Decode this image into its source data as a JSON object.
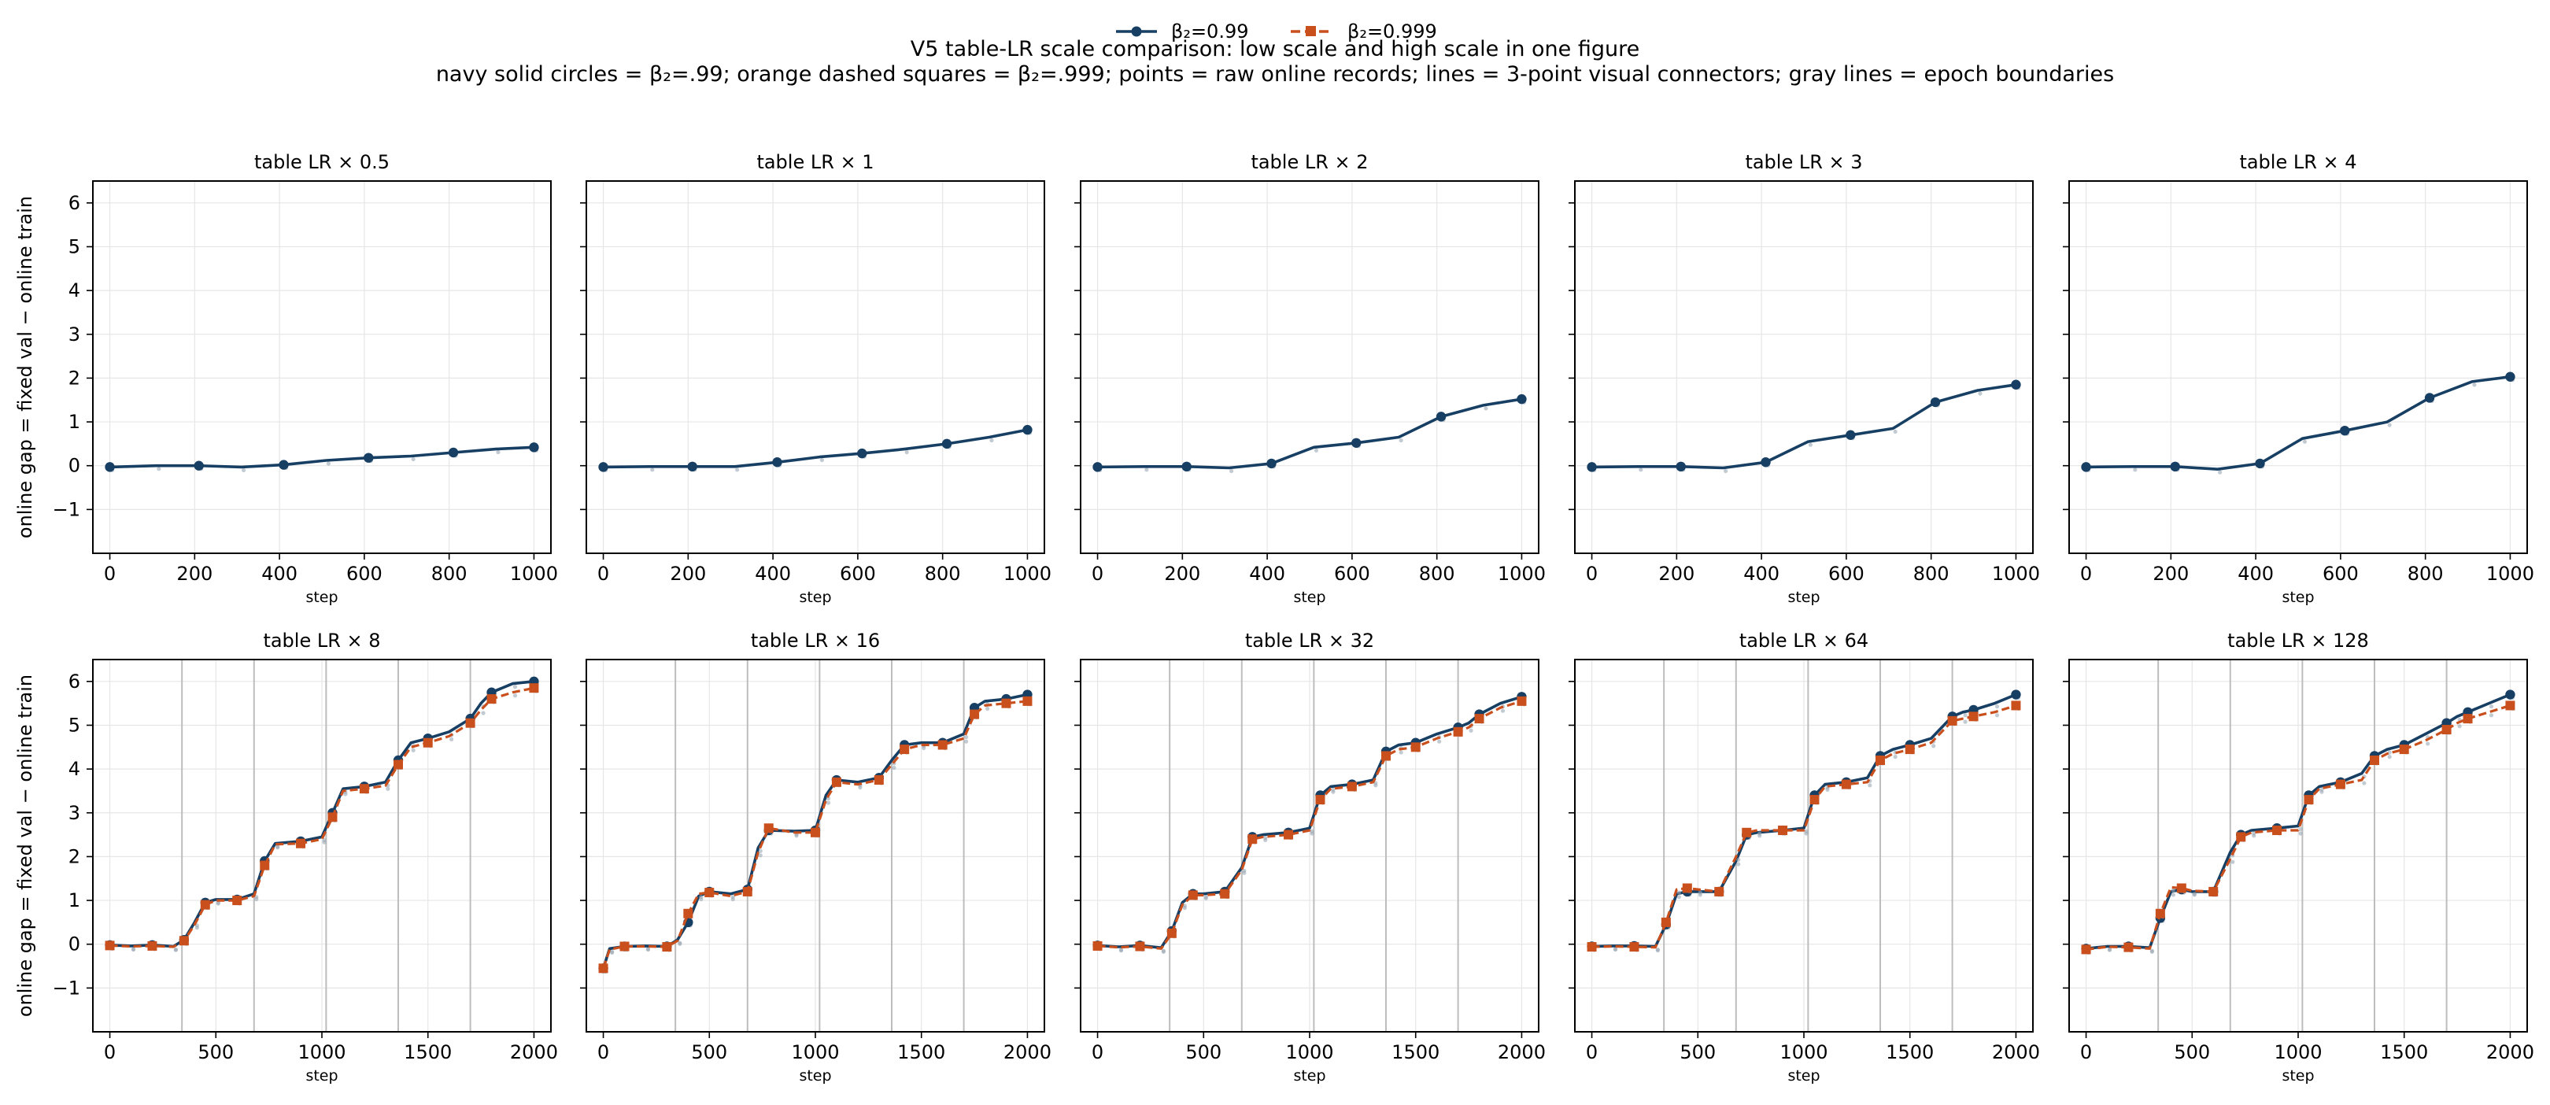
{
  "figure": {
    "title": "V5 table-LR scale comparison: low scale and high scale in one figure",
    "subtitle": "navy solid circles = β₂=.99; orange dashed squares = β₂=.999; points = raw online records; lines = 3-point visual connectors; gray lines = epoch boundaries",
    "legend": [
      {
        "label": "β₂=0.99",
        "color": "#173f63",
        "marker": "circle",
        "dash": "solid"
      },
      {
        "label": "β₂=0.999",
        "color": "#c94f1d",
        "marker": "square",
        "dash": "dashed"
      }
    ],
    "colors": {
      "navy": "#173f63",
      "orange": "#c94f1d",
      "raw_points": "#9aa6b4",
      "epoch_line": "#bdbdbd"
    }
  },
  "chart_data": [
    {
      "type": "line",
      "title": "table LR × 0.5",
      "xlabel": "step",
      "ylabel": "online gap = fixed val − online train",
      "xlim": [
        -40,
        1040
      ],
      "ylim": [
        -2,
        6.5
      ],
      "xticks": [
        0,
        200,
        400,
        600,
        800,
        1000
      ],
      "yticks": [
        -1,
        0,
        1,
        2,
        3,
        4,
        5,
        6
      ],
      "grid": true,
      "epoch_boundaries": [],
      "series": [
        {
          "name": "β₂=0.99",
          "x": [
            0,
            110,
            210,
            310,
            410,
            510,
            610,
            710,
            810,
            910,
            1000
          ],
          "y": [
            -0.03,
            0.0,
            0.0,
            -0.03,
            0.02,
            0.12,
            0.18,
            0.22,
            0.3,
            0.38,
            0.42
          ]
        },
        {
          "name": "β₂=0.999",
          "x": [],
          "y": []
        }
      ]
    },
    {
      "type": "line",
      "title": "table LR × 1",
      "xlabel": "step",
      "ylabel": "",
      "xlim": [
        -40,
        1040
      ],
      "ylim": [
        -2,
        6.5
      ],
      "xticks": [
        0,
        200,
        400,
        600,
        800,
        1000
      ],
      "yticks": [
        -1,
        0,
        1,
        2,
        3,
        4,
        5,
        6
      ],
      "grid": true,
      "epoch_boundaries": [],
      "series": [
        {
          "name": "β₂=0.99",
          "x": [
            0,
            110,
            210,
            310,
            410,
            510,
            610,
            710,
            810,
            910,
            1000
          ],
          "y": [
            -0.03,
            -0.02,
            -0.02,
            -0.02,
            0.08,
            0.2,
            0.28,
            0.38,
            0.5,
            0.65,
            0.82
          ]
        },
        {
          "name": "β₂=0.999",
          "x": [],
          "y": []
        }
      ]
    },
    {
      "type": "line",
      "title": "table LR × 2",
      "xlabel": "step",
      "ylabel": "",
      "xlim": [
        -40,
        1040
      ],
      "ylim": [
        -2,
        6.5
      ],
      "xticks": [
        0,
        200,
        400,
        600,
        800,
        1000
      ],
      "yticks": [
        -1,
        0,
        1,
        2,
        3,
        4,
        5,
        6
      ],
      "grid": true,
      "epoch_boundaries": [],
      "series": [
        {
          "name": "β₂=0.99",
          "x": [
            0,
            110,
            210,
            310,
            410,
            510,
            610,
            710,
            810,
            910,
            1000
          ],
          "y": [
            -0.03,
            -0.02,
            -0.02,
            -0.05,
            0.05,
            0.42,
            0.52,
            0.65,
            1.12,
            1.38,
            1.52
          ]
        },
        {
          "name": "β₂=0.999",
          "x": [],
          "y": []
        }
      ]
    },
    {
      "type": "line",
      "title": "table LR × 3",
      "xlabel": "step",
      "ylabel": "",
      "xlim": [
        -40,
        1040
      ],
      "ylim": [
        -2,
        6.5
      ],
      "xticks": [
        0,
        200,
        400,
        600,
        800,
        1000
      ],
      "yticks": [
        -1,
        0,
        1,
        2,
        3,
        4,
        5,
        6
      ],
      "grid": true,
      "epoch_boundaries": [],
      "series": [
        {
          "name": "β₂=0.99",
          "x": [
            0,
            110,
            210,
            310,
            410,
            510,
            610,
            710,
            810,
            910,
            1000
          ],
          "y": [
            -0.03,
            -0.02,
            -0.02,
            -0.05,
            0.08,
            0.55,
            0.7,
            0.85,
            1.45,
            1.72,
            1.85
          ]
        },
        {
          "name": "β₂=0.999",
          "x": [],
          "y": []
        }
      ]
    },
    {
      "type": "line",
      "title": "table LR × 4",
      "xlabel": "step",
      "ylabel": "",
      "xlim": [
        -40,
        1040
      ],
      "ylim": [
        -2,
        6.5
      ],
      "xticks": [
        0,
        200,
        400,
        600,
        800,
        1000
      ],
      "yticks": [
        -1,
        0,
        1,
        2,
        3,
        4,
        5,
        6
      ],
      "grid": true,
      "epoch_boundaries": [],
      "series": [
        {
          "name": "β₂=0.99",
          "x": [
            0,
            110,
            210,
            310,
            410,
            510,
            610,
            710,
            810,
            910,
            1000
          ],
          "y": [
            -0.03,
            -0.02,
            -0.02,
            -0.08,
            0.05,
            0.62,
            0.8,
            1.0,
            1.55,
            1.92,
            2.03
          ]
        },
        {
          "name": "β₂=0.999",
          "x": [],
          "y": []
        }
      ]
    },
    {
      "type": "line",
      "title": "table LR × 8",
      "xlabel": "step",
      "ylabel": "online gap = fixed val − online train",
      "xlim": [
        -80,
        2080
      ],
      "ylim": [
        -2,
        6.5
      ],
      "xticks": [
        0,
        500,
        1000,
        1500,
        2000
      ],
      "yticks": [
        -1,
        0,
        1,
        2,
        3,
        4,
        5,
        6
      ],
      "grid": true,
      "epoch_boundaries": [
        340,
        680,
        1020,
        1360,
        1700
      ],
      "series": [
        {
          "name": "β₂=0.99",
          "x": [
            0,
            100,
            200,
            300,
            350,
            400,
            450,
            500,
            600,
            680,
            730,
            780,
            900,
            1000,
            1050,
            1100,
            1200,
            1300,
            1360,
            1420,
            1500,
            1600,
            1700,
            1750,
            1800,
            1900,
            2000
          ],
          "y": [
            -0.02,
            -0.04,
            -0.02,
            -0.05,
            0.1,
            0.5,
            0.95,
            1.02,
            1.02,
            1.15,
            1.9,
            2.3,
            2.35,
            2.45,
            3.0,
            3.55,
            3.6,
            3.7,
            4.2,
            4.6,
            4.7,
            4.85,
            5.15,
            5.5,
            5.75,
            5.95,
            6.0
          ]
        },
        {
          "name": "β₂=0.999",
          "x": [
            0,
            100,
            200,
            300,
            350,
            400,
            450,
            500,
            600,
            680,
            730,
            780,
            900,
            1000,
            1050,
            1100,
            1200,
            1300,
            1360,
            1420,
            1500,
            1600,
            1700,
            1750,
            1800,
            1900,
            2000
          ],
          "y": [
            -0.03,
            -0.05,
            -0.04,
            -0.06,
            0.08,
            0.45,
            0.9,
            1.0,
            1.0,
            1.1,
            1.8,
            2.28,
            2.3,
            2.4,
            2.9,
            3.5,
            3.55,
            3.62,
            4.1,
            4.5,
            4.6,
            4.75,
            5.05,
            5.35,
            5.6,
            5.75,
            5.85
          ]
        }
      ]
    },
    {
      "type": "line",
      "title": "table LR × 16",
      "xlabel": "step",
      "ylabel": "",
      "xlim": [
        -80,
        2080
      ],
      "ylim": [
        -2,
        6.5
      ],
      "xticks": [
        0,
        500,
        1000,
        1500,
        2000
      ],
      "yticks": [
        -1,
        0,
        1,
        2,
        3,
        4,
        5,
        6
      ],
      "grid": true,
      "epoch_boundaries": [
        340,
        680,
        1020,
        1360,
        1700
      ],
      "series": [
        {
          "name": "β₂=0.99",
          "x": [
            0,
            30,
            100,
            200,
            300,
            350,
            400,
            450,
            500,
            600,
            680,
            730,
            780,
            900,
            1000,
            1050,
            1100,
            1200,
            1300,
            1360,
            1420,
            1500,
            1600,
            1700,
            1750,
            1800,
            1900,
            2000
          ],
          "y": [
            -0.55,
            -0.1,
            -0.05,
            -0.04,
            -0.05,
            0.1,
            0.5,
            1.1,
            1.2,
            1.15,
            1.25,
            2.2,
            2.6,
            2.58,
            2.6,
            3.4,
            3.75,
            3.7,
            3.8,
            4.2,
            4.55,
            4.6,
            4.6,
            4.8,
            5.4,
            5.55,
            5.6,
            5.7
          ]
        },
        {
          "name": "β₂=0.999",
          "x": [
            0,
            30,
            100,
            200,
            300,
            350,
            400,
            450,
            500,
            600,
            680,
            730,
            780,
            900,
            1000,
            1050,
            1100,
            1200,
            1300,
            1360,
            1420,
            1500,
            1600,
            1700,
            1750,
            1800,
            1900,
            2000
          ],
          "y": [
            -0.55,
            -0.12,
            -0.05,
            -0.05,
            -0.06,
            0.08,
            0.7,
            1.15,
            1.18,
            1.1,
            1.2,
            2.1,
            2.65,
            2.55,
            2.55,
            3.3,
            3.7,
            3.65,
            3.75,
            4.1,
            4.45,
            4.55,
            4.55,
            4.7,
            5.25,
            5.45,
            5.5,
            5.55
          ]
        }
      ]
    },
    {
      "type": "line",
      "title": "table LR × 32",
      "xlabel": "step",
      "ylabel": "",
      "xlim": [
        -80,
        2080
      ],
      "ylim": [
        -2,
        6.5
      ],
      "xticks": [
        0,
        500,
        1000,
        1500,
        2000
      ],
      "yticks": [
        -1,
        0,
        1,
        2,
        3,
        4,
        5,
        6
      ],
      "grid": true,
      "epoch_boundaries": [
        340,
        680,
        1020,
        1360,
        1700
      ],
      "series": [
        {
          "name": "β₂=0.99",
          "x": [
            0,
            100,
            200,
            300,
            350,
            400,
            450,
            500,
            600,
            680,
            730,
            780,
            900,
            1000,
            1050,
            1100,
            1200,
            1300,
            1360,
            1420,
            1500,
            1600,
            1700,
            1750,
            1800,
            1900,
            2000
          ],
          "y": [
            -0.03,
            -0.06,
            -0.03,
            -0.08,
            0.3,
            0.95,
            1.15,
            1.15,
            1.2,
            1.75,
            2.45,
            2.5,
            2.55,
            2.65,
            3.4,
            3.6,
            3.65,
            3.75,
            4.4,
            4.55,
            4.6,
            4.8,
            4.95,
            5.05,
            5.25,
            5.5,
            5.65
          ]
        },
        {
          "name": "β₂=0.999",
          "x": [
            0,
            100,
            200,
            300,
            350,
            400,
            450,
            500,
            600,
            680,
            730,
            780,
            900,
            1000,
            1050,
            1100,
            1200,
            1300,
            1360,
            1420,
            1500,
            1600,
            1700,
            1750,
            1800,
            1900,
            2000
          ],
          "y": [
            -0.04,
            -0.07,
            -0.05,
            -0.1,
            0.25,
            0.9,
            1.12,
            1.12,
            1.15,
            1.7,
            2.4,
            2.45,
            2.5,
            2.6,
            3.3,
            3.55,
            3.6,
            3.7,
            4.3,
            4.45,
            4.5,
            4.7,
            4.85,
            4.95,
            5.15,
            5.4,
            5.55
          ]
        }
      ]
    },
    {
      "type": "line",
      "title": "table LR × 64",
      "xlabel": "step",
      "ylabel": "",
      "xlim": [
        -80,
        2080
      ],
      "ylim": [
        -2,
        6.5
      ],
      "xticks": [
        0,
        500,
        1000,
        1500,
        2000
      ],
      "yticks": [
        -1,
        0,
        1,
        2,
        3,
        4,
        5,
        6
      ],
      "grid": true,
      "epoch_boundaries": [
        340,
        680,
        1020,
        1360,
        1700
      ],
      "series": [
        {
          "name": "β₂=0.99",
          "x": [
            0,
            100,
            200,
            300,
            350,
            400,
            450,
            500,
            600,
            680,
            730,
            780,
            900,
            1000,
            1050,
            1100,
            1200,
            1300,
            1360,
            1420,
            1500,
            1600,
            1700,
            1750,
            1800,
            1900,
            2000
          ],
          "y": [
            -0.05,
            -0.04,
            -0.04,
            -0.05,
            0.45,
            1.15,
            1.2,
            1.2,
            1.2,
            1.9,
            2.5,
            2.55,
            2.6,
            2.65,
            3.4,
            3.65,
            3.7,
            3.8,
            4.3,
            4.45,
            4.55,
            4.7,
            5.2,
            5.3,
            5.35,
            5.5,
            5.7
          ]
        },
        {
          "name": "β₂=0.999",
          "x": [
            0,
            100,
            200,
            300,
            350,
            400,
            450,
            500,
            600,
            680,
            730,
            780,
            900,
            1000,
            1050,
            1100,
            1200,
            1300,
            1360,
            1420,
            1500,
            1600,
            1700,
            1750,
            1800,
            1900,
            2000
          ],
          "y": [
            -0.06,
            -0.05,
            -0.06,
            -0.07,
            0.5,
            1.25,
            1.28,
            1.25,
            1.2,
            2.0,
            2.55,
            2.6,
            2.6,
            2.6,
            3.3,
            3.6,
            3.65,
            3.7,
            4.2,
            4.35,
            4.45,
            4.6,
            5.1,
            5.15,
            5.2,
            5.3,
            5.45
          ]
        }
      ]
    },
    {
      "type": "line",
      "title": "table LR × 128",
      "xlabel": "step",
      "ylabel": "",
      "xlim": [
        -80,
        2080
      ],
      "ylim": [
        -2,
        6.5
      ],
      "xticks": [
        0,
        500,
        1000,
        1500,
        2000
      ],
      "yticks": [
        -1,
        0,
        1,
        2,
        3,
        4,
        5,
        6
      ],
      "grid": true,
      "epoch_boundaries": [
        340,
        680,
        1020,
        1360,
        1700
      ],
      "series": [
        {
          "name": "β₂=0.99",
          "x": [
            0,
            100,
            200,
            300,
            350,
            400,
            450,
            500,
            600,
            680,
            730,
            780,
            900,
            1000,
            1050,
            1100,
            1200,
            1300,
            1360,
            1420,
            1500,
            1600,
            1700,
            1750,
            1800,
            1900,
            2000
          ],
          "y": [
            -0.1,
            -0.05,
            -0.05,
            -0.08,
            0.6,
            1.2,
            1.25,
            1.2,
            1.2,
            2.1,
            2.5,
            2.6,
            2.65,
            2.7,
            3.4,
            3.6,
            3.7,
            3.9,
            4.3,
            4.45,
            4.55,
            4.8,
            5.05,
            5.2,
            5.3,
            5.5,
            5.7
          ]
        },
        {
          "name": "β₂=0.999",
          "x": [
            0,
            100,
            200,
            300,
            350,
            400,
            450,
            500,
            600,
            680,
            730,
            780,
            900,
            1000,
            1050,
            1100,
            1200,
            1300,
            1360,
            1420,
            1500,
            1600,
            1700,
            1750,
            1800,
            1900,
            2000
          ],
          "y": [
            -0.12,
            -0.06,
            -0.07,
            -0.1,
            0.7,
            1.3,
            1.28,
            1.22,
            1.2,
            1.95,
            2.45,
            2.55,
            2.6,
            2.6,
            3.3,
            3.55,
            3.65,
            3.75,
            4.2,
            4.35,
            4.45,
            4.65,
            4.9,
            5.05,
            5.15,
            5.3,
            5.45
          ]
        }
      ]
    }
  ]
}
